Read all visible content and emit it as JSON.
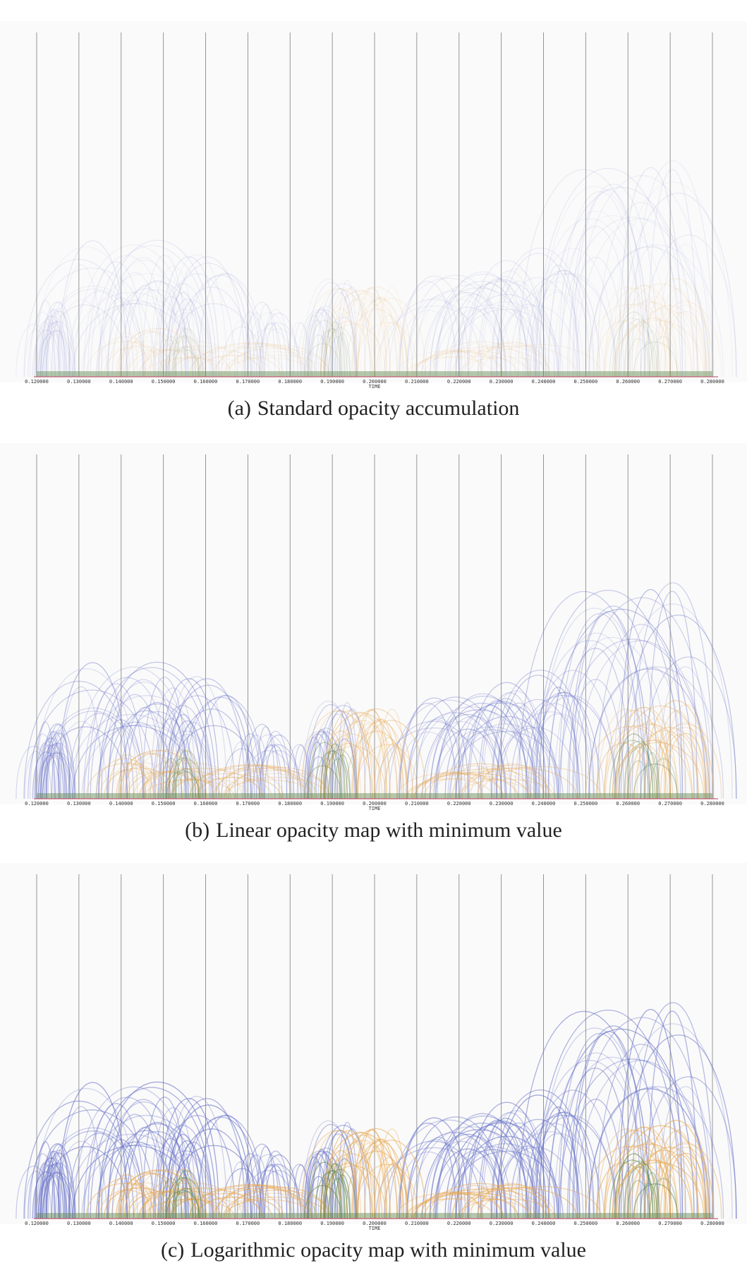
{
  "chart_data": [
    {
      "type": "arc",
      "caption_tag": "(a)",
      "caption": "Standard opacity accumulation",
      "xlabel": "TIME",
      "xlim": [
        0.12,
        0.28
      ],
      "x_ticks": [
        "0.120000",
        "0.130000",
        "0.140000",
        "0.150000",
        "0.160000",
        "0.170000",
        "0.180000",
        "0.190000",
        "0.200000",
        "0.210000",
        "0.220000",
        "0.230000",
        "0.240000",
        "0.250000",
        "0.260000",
        "0.270000",
        "0.280000"
      ],
      "opacity_mode": "standard",
      "grid": true
    },
    {
      "type": "arc",
      "caption_tag": "(b)",
      "caption": "Linear opacity map with minimum value",
      "xlabel": "TIME",
      "xlim": [
        0.12,
        0.28
      ],
      "x_ticks": [
        "0.120000",
        "0.130000",
        "0.140000",
        "0.150000",
        "0.160000",
        "0.170000",
        "0.180000",
        "0.190000",
        "0.200000",
        "0.210000",
        "0.220000",
        "0.230000",
        "0.240000",
        "0.250000",
        "0.260000",
        "0.270000",
        "0.280000"
      ],
      "opacity_mode": "linear",
      "grid": true
    },
    {
      "type": "arc",
      "caption_tag": "(c)",
      "caption": "Logarithmic opacity map with minimum value",
      "xlabel": "TIME",
      "xlim": [
        0.12,
        0.28
      ],
      "x_ticks": [
        "0.120000",
        "0.130000",
        "0.140000",
        "0.150000",
        "0.160000",
        "0.170000",
        "0.180000",
        "0.190000",
        "0.200000",
        "0.210000",
        "0.220000",
        "0.230000",
        "0.240000",
        "0.250000",
        "0.260000",
        "0.270000",
        "0.280000"
      ],
      "opacity_mode": "logarithmic",
      "grid": true
    }
  ],
  "colors": {
    "blue": "#6a74c8",
    "orange": "#e8a850",
    "green": "#5f8a4e",
    "grid": "#8a8a8a",
    "baseline": "#c04060"
  }
}
